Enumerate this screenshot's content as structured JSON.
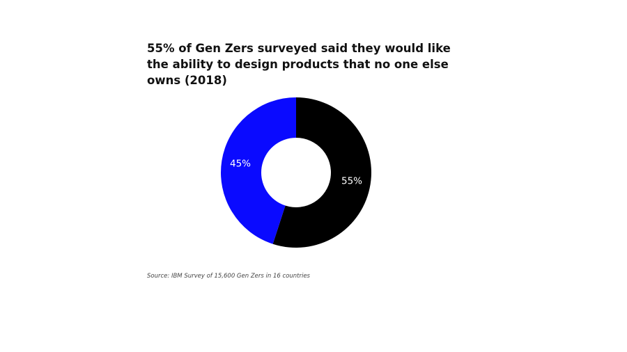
{
  "chart_data": {
    "type": "pie",
    "title": "55% of Gen Zers surveyed said they would like the ability to design products that no one else owns (2018)",
    "slices": [
      {
        "label": "55%",
        "value": 55,
        "color": "#000000"
      },
      {
        "label": "45%",
        "value": 45,
        "color": "#0a0aff"
      }
    ],
    "donut": true,
    "start_angle_deg": 0,
    "direction": "clockwise",
    "source": "Source: IBM Survey of 15,600 Gen Zers in 16 countries"
  }
}
